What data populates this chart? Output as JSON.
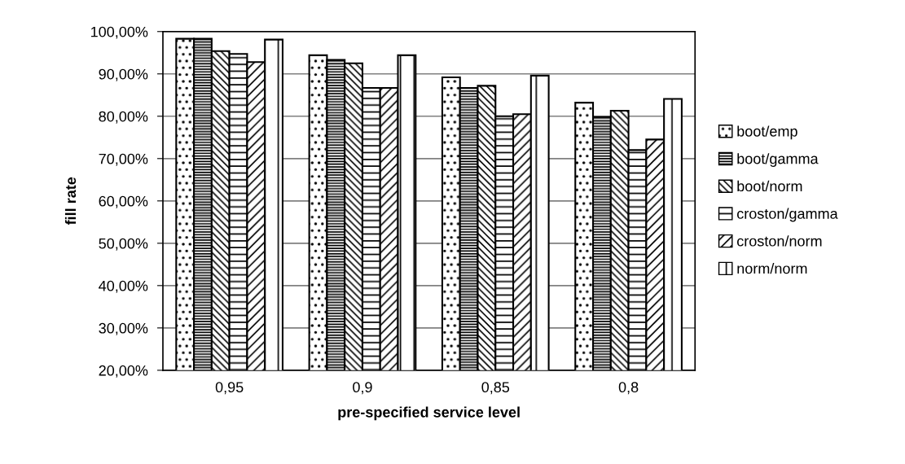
{
  "chart_data": {
    "type": "bar",
    "xlabel": "pre-specified service level",
    "ylabel": "fill rate",
    "categories": [
      "0,95",
      "0,9",
      "0,85",
      "0,8"
    ],
    "series": [
      {
        "name": "boot/emp",
        "color": "#000000",
        "values": [
          98.3,
          94.4,
          89.2,
          83.2
        ]
      },
      {
        "name": "boot/gamma",
        "color": "#000000",
        "values": [
          98.3,
          93.3,
          86.7,
          79.8
        ]
      },
      {
        "name": "boot/norm",
        "color": "#000000",
        "values": [
          95.4,
          92.5,
          87.2,
          81.3
        ]
      },
      {
        "name": "croston/gamma",
        "color": "#000000",
        "values": [
          94.7,
          86.7,
          80.0,
          72.0
        ]
      },
      {
        "name": "croston/norm",
        "color": "#000000",
        "values": [
          92.8,
          86.7,
          80.5,
          74.5
        ]
      },
      {
        "name": "norm/norm",
        "color": "#000000",
        "values": [
          98.1,
          94.4,
          89.6,
          84.1
        ]
      }
    ],
    "ylim": [
      20,
      100
    ],
    "yticks": [
      {
        "value": 20,
        "label": "20,00%"
      },
      {
        "value": 30,
        "label": "30,00%"
      },
      {
        "value": 40,
        "label": "40,00%"
      },
      {
        "value": 50,
        "label": "50,00%"
      },
      {
        "value": 60,
        "label": "60,00%"
      },
      {
        "value": 70,
        "label": "70,00%"
      },
      {
        "value": 80,
        "label": "80,00%"
      },
      {
        "value": 90,
        "label": "90,00%"
      },
      {
        "value": 100,
        "label": "100,00%"
      }
    ],
    "grid": "y",
    "legend": "right"
  }
}
